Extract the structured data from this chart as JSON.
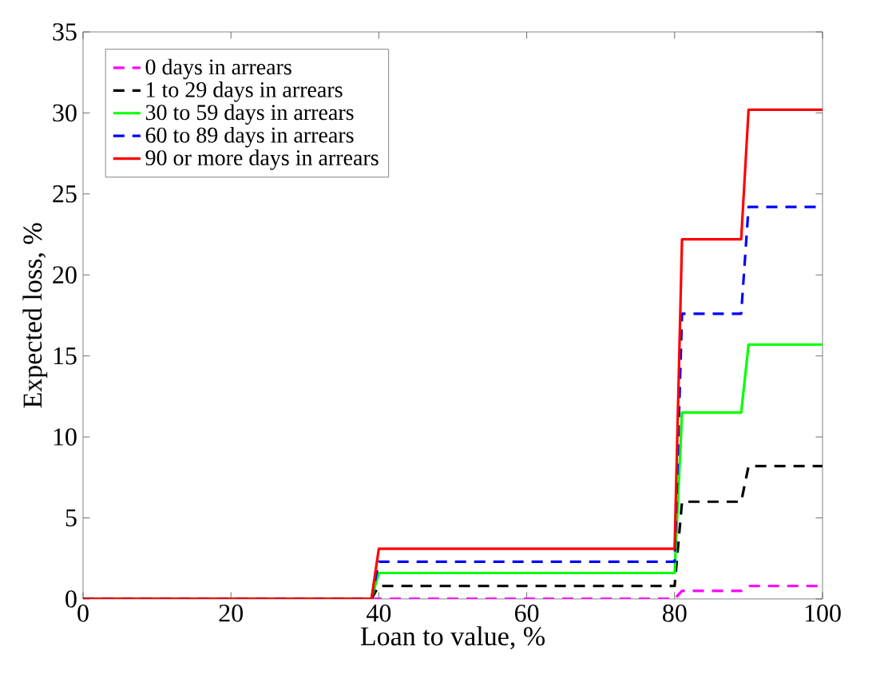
{
  "chart_data": {
    "type": "line",
    "xlabel": "Loan to value, %",
    "ylabel": "Expected loss, %",
    "xlim": [
      0,
      100
    ],
    "ylim": [
      0,
      35
    ],
    "xticks": [
      0,
      20,
      40,
      60,
      80,
      100
    ],
    "yticks": [
      0,
      5,
      10,
      15,
      20,
      25,
      30,
      35
    ],
    "legend": "top left",
    "grid": false,
    "series": [
      {
        "name": "0 days in arrears",
        "color": "#ff00ff",
        "line_style": "dashed",
        "x": [
          0,
          39,
          40,
          80,
          81,
          89,
          90,
          100
        ],
        "values": [
          0,
          0,
          0,
          0,
          0.5,
          0.5,
          0.8,
          0.8
        ]
      },
      {
        "name": "1 to 29 days in arrears",
        "color": "#000000",
        "line_style": "dashed",
        "x": [
          0,
          39,
          40,
          80,
          81,
          89,
          90,
          100
        ],
        "values": [
          0,
          0,
          0.8,
          0.8,
          6,
          6,
          8.2,
          8.2
        ]
      },
      {
        "name": "30 to 59 days in arrears",
        "color": "#00ff00",
        "line_style": "solid",
        "x": [
          0,
          39,
          40,
          80,
          81,
          89,
          90,
          100
        ],
        "values": [
          0,
          0,
          1.6,
          1.6,
          11.5,
          11.5,
          15.7,
          15.7
        ]
      },
      {
        "name": "60 to 89 days in arrears",
        "color": "#0000ff",
        "line_style": "dashed",
        "x": [
          0,
          39,
          40,
          80,
          81,
          89,
          90,
          100
        ],
        "values": [
          0,
          0,
          2.3,
          2.3,
          17.6,
          17.6,
          24.2,
          24.2
        ]
      },
      {
        "name": "90 or more days in arrears",
        "color": "#ff0000",
        "line_style": "solid",
        "x": [
          0,
          39,
          40,
          80,
          81,
          89,
          90,
          100
        ],
        "values": [
          0,
          0,
          3.1,
          3.1,
          22.2,
          22.2,
          30.2,
          30.2
        ]
      }
    ]
  }
}
